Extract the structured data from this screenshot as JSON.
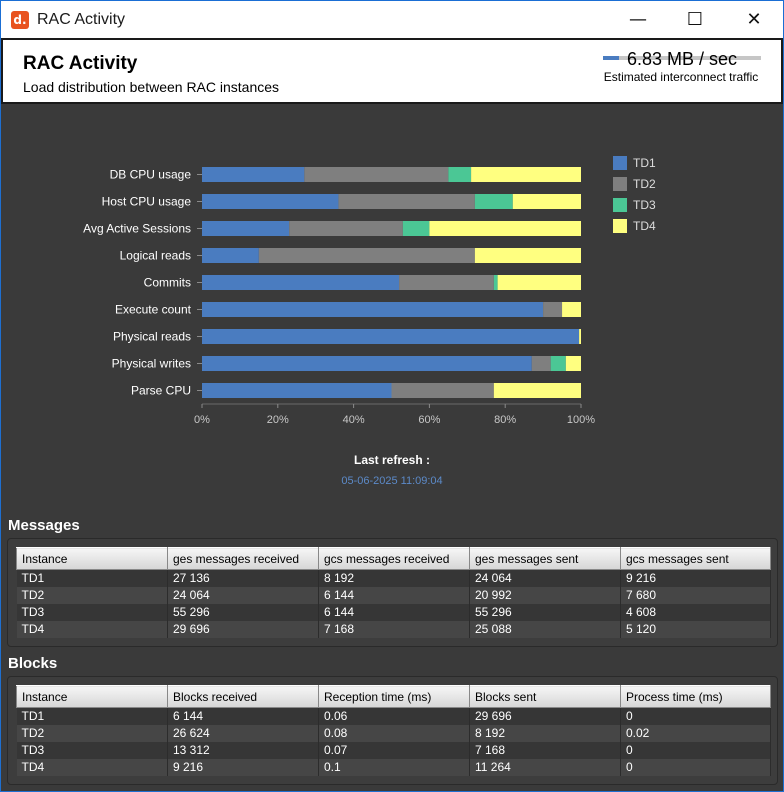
{
  "window": {
    "title": "RAC Activity",
    "icon_label": "d."
  },
  "header": {
    "title": "RAC Activity",
    "subtitle": "Load distribution between RAC instances",
    "traffic_value": "6.83 MB / sec",
    "traffic_label": "Estimated interconnect traffic",
    "traffic_fill": 0.1
  },
  "chart_data": {
    "type": "bar",
    "orientation": "horizontal",
    "stacked": "percent",
    "categories": [
      "DB CPU usage",
      "Host CPU usage",
      "Avg Active Sessions",
      "Logical reads",
      "Commits",
      "Execute count",
      "Physical reads",
      "Physical writes",
      "Parse CPU"
    ],
    "series": [
      {
        "name": "TD1",
        "color": "#4a7cc0",
        "values": [
          27,
          36,
          23,
          15,
          52,
          90,
          99.5,
          87,
          50
        ]
      },
      {
        "name": "TD2",
        "color": "#7f7f7f",
        "values": [
          38,
          36,
          30,
          57,
          25,
          5,
          0,
          5,
          27
        ]
      },
      {
        "name": "TD3",
        "color": "#4bc795",
        "values": [
          6,
          10,
          7,
          0,
          1,
          0,
          0,
          4,
          0
        ]
      },
      {
        "name": "TD4",
        "color": "#ffff80",
        "values": [
          29,
          18,
          40,
          28,
          22,
          5,
          0.5,
          4,
          23
        ]
      }
    ],
    "xlim": [
      0,
      100
    ],
    "xticks": [
      "0%",
      "20%",
      "40%",
      "60%",
      "80%",
      "100%"
    ],
    "legend": "right",
    "grid": false
  },
  "refresh": {
    "label": "Last refresh :",
    "value": "05-06-2025 11:09:04"
  },
  "messages": {
    "title": "Messages",
    "columns": [
      "Instance",
      "ges messages received",
      "gcs messages received",
      "ges messages sent",
      "gcs messages sent"
    ],
    "rows": [
      [
        "TD1",
        "27 136",
        "8 192",
        "24 064",
        "9 216"
      ],
      [
        "TD2",
        "24 064",
        "6 144",
        "20 992",
        "7 680"
      ],
      [
        "TD3",
        "55 296",
        "6 144",
        "55 296",
        "4 608"
      ],
      [
        "TD4",
        "29 696",
        "7 168",
        "25 088",
        "5 120"
      ]
    ]
  },
  "blocks": {
    "title": "Blocks",
    "columns": [
      "Instance",
      "Blocks received",
      "Reception time (ms)",
      "Blocks sent",
      "Process time (ms)"
    ],
    "rows": [
      [
        "TD1",
        "6 144",
        "0.06",
        "29 696",
        "0"
      ],
      [
        "TD2",
        "26 624",
        "0.08",
        "8 192",
        "0.02"
      ],
      [
        "TD3",
        "13 312",
        "0.07",
        "7 168",
        "0"
      ],
      [
        "TD4",
        "9 216",
        "0.1",
        "11 264",
        "0"
      ]
    ]
  }
}
